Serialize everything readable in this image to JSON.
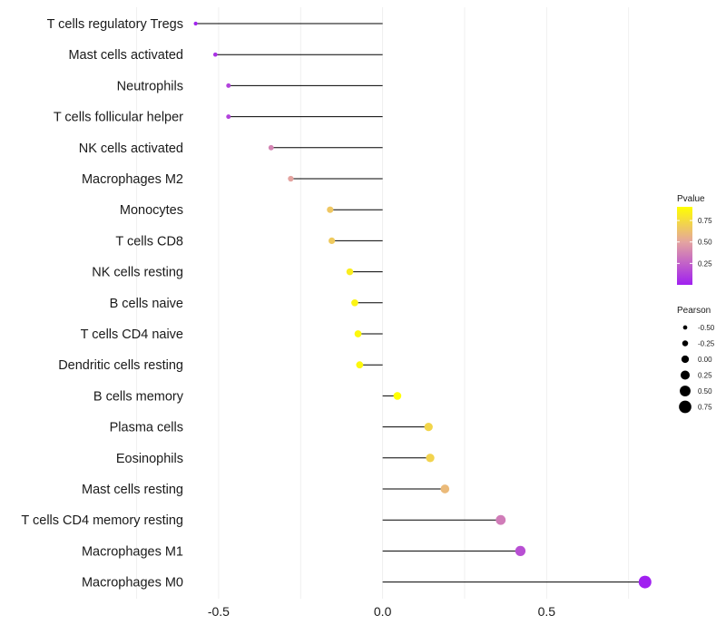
{
  "chart_data": {
    "type": "lollipop",
    "title": "",
    "xlabel": "",
    "ylabel": "",
    "xlim": [
      -0.58,
      0.82
    ],
    "xticks": [
      -0.5,
      0.0,
      0.5
    ],
    "xtick_labels": [
      "-0.5",
      "0.0",
      "0.5"
    ],
    "grid": true,
    "categories": [
      "T cells regulatory  Tregs",
      "Mast cells activated",
      "Neutrophils",
      "T cells follicular helper",
      "NK cells activated",
      "Macrophages M2",
      "Monocytes",
      "T cells CD8",
      "NK cells resting",
      "B cells naive",
      "T cells CD4 naive",
      "Dendritic cells resting",
      "B cells memory",
      "Plasma cells",
      "Eosinophils",
      "Mast cells resting",
      "T cells CD4 memory resting",
      "Macrophages M1",
      "Macrophages M0"
    ],
    "series": [
      {
        "name": "Pearson",
        "values": [
          -0.57,
          -0.51,
          -0.47,
          -0.47,
          -0.34,
          -0.28,
          -0.16,
          -0.155,
          -0.1,
          -0.085,
          -0.075,
          -0.07,
          0.045,
          0.14,
          0.145,
          0.19,
          0.36,
          0.42,
          0.8
        ]
      },
      {
        "name": "Pvalue",
        "values": [
          0.01,
          0.07,
          0.13,
          0.13,
          0.38,
          0.5,
          0.66,
          0.67,
          0.83,
          0.86,
          0.88,
          0.88,
          0.91,
          0.72,
          0.71,
          0.6,
          0.35,
          0.18,
          0.001
        ]
      }
    ],
    "legend_color": {
      "title": "Pvalue",
      "labels": [
        "0.75",
        "0.50",
        "0.25"
      ],
      "values": [
        0.75,
        0.5,
        0.25
      ],
      "range": [
        0,
        0.91
      ],
      "low_color": "#a020f0",
      "mid_color": "#e4a4a0",
      "high_color": "#ffff00",
      "placement": "right"
    },
    "legend_size": {
      "title": "Pearson",
      "labels": [
        "-0.50",
        "-0.25",
        "0.00",
        "0.25",
        "0.50",
        "0.75"
      ],
      "values": [
        -0.5,
        -0.25,
        0.0,
        0.25,
        0.5,
        0.75
      ],
      "placement": "right"
    }
  }
}
